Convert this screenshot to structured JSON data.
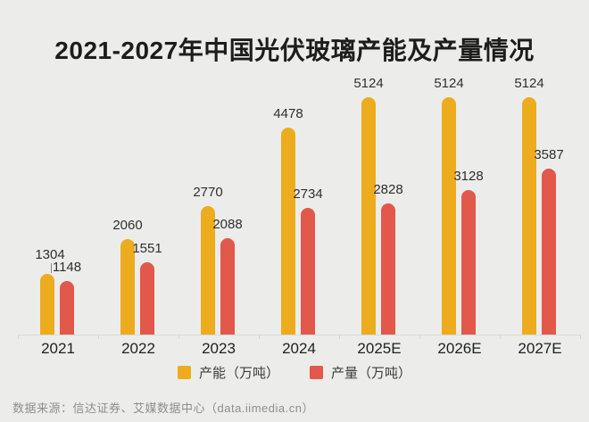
{
  "header": {
    "title": "2021-2027年中国光伏玻璃产能及产量情况"
  },
  "chart_data": {
    "type": "bar",
    "title": "2021-2027年中国光伏玻璃产能及产量情况",
    "categories": [
      "2021",
      "2022",
      "2023",
      "2024",
      "2025E",
      "2026E",
      "2027E"
    ],
    "series": [
      {
        "name": "产能（万吨）",
        "key": "capacity",
        "color": "#ECAC1D",
        "values": [
          1304,
          2060,
          2770,
          4478,
          5124,
          5124,
          5124
        ]
      },
      {
        "name": "产量（万吨）",
        "key": "output",
        "color": "#E2584A",
        "values": [
          1148,
          1551,
          2088,
          2734,
          2828,
          3128,
          3587
        ]
      }
    ],
    "xlabel": "",
    "ylabel": "",
    "ylim": [
      0,
      5600
    ],
    "grid": false,
    "value_labels": true,
    "legend_position": "bottom"
  },
  "legend": {
    "items": [
      {
        "label": "产能（万吨）",
        "color": "#ECAC1D"
      },
      {
        "label": "产量（万吨）",
        "color": "#E2584A"
      }
    ]
  },
  "footer": {
    "source": "数据来源：信达证券、艾媒数据中心（data.iimedia.cn）"
  },
  "colors": {
    "background": "#ECECEA",
    "bar_capacity": "#ECAC1D",
    "bar_output": "#E2584A",
    "axis_line": "#D9D9D6",
    "title_text": "#1D1D1B",
    "value_label_text": "#2F2F2D",
    "axis_label_text": "#1F1F1D",
    "legend_text": "#3C3C3A",
    "source_text": "#8E8E8A"
  }
}
